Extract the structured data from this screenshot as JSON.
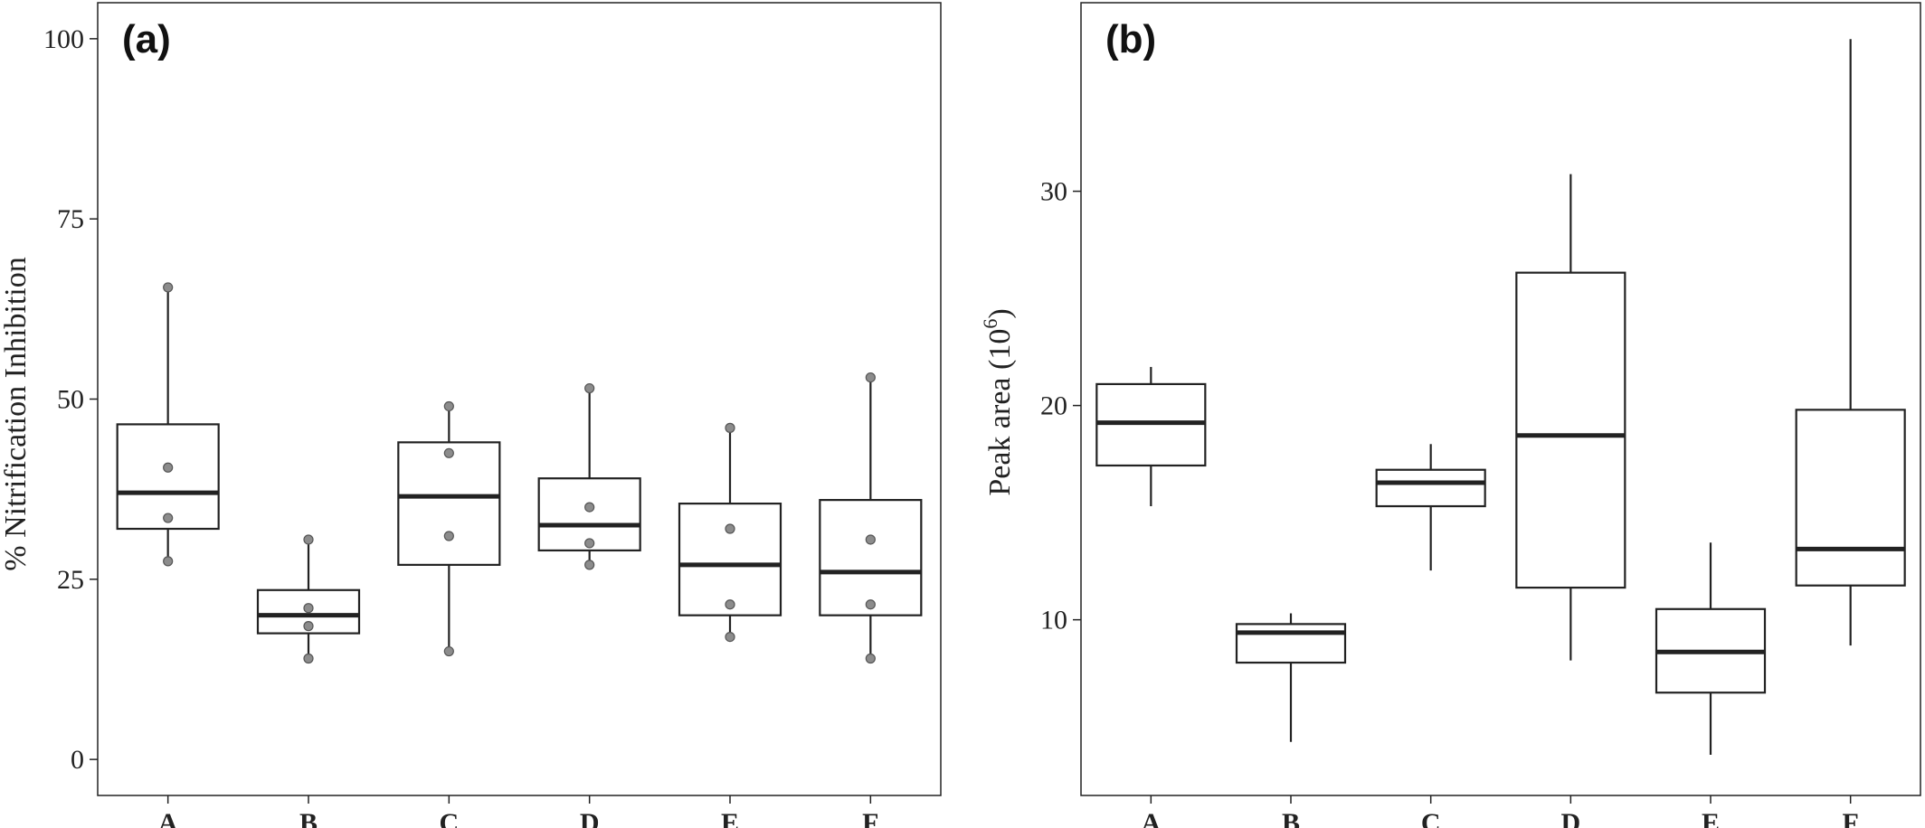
{
  "chart_data": [
    {
      "type": "box",
      "panel_label": "(a)",
      "ylabel": "% Nitrification Inhibition",
      "xlabel": "",
      "ylim": [
        -5,
        105
      ],
      "yticks": [
        0,
        25,
        50,
        75,
        100
      ],
      "categories": [
        "A",
        "B",
        "C",
        "D",
        "E",
        "F"
      ],
      "boxes": [
        {
          "category": "A",
          "whisker_low": 27.5,
          "q1": 32,
          "median": 37,
          "q3": 46.5,
          "whisker_high": 65.5
        },
        {
          "category": "B",
          "whisker_low": 14,
          "q1": 17.5,
          "median": 20,
          "q3": 23.5,
          "whisker_high": 30.5
        },
        {
          "category": "C",
          "whisker_low": 15,
          "q1": 27,
          "median": 36.5,
          "q3": 44,
          "whisker_high": 49
        },
        {
          "category": "D",
          "whisker_low": 27,
          "q1": 29,
          "median": 32.5,
          "q3": 39,
          "whisker_high": 51.5
        },
        {
          "category": "E",
          "whisker_low": 17,
          "q1": 20,
          "median": 27,
          "q3": 35.5,
          "whisker_high": 46
        },
        {
          "category": "F",
          "whisker_low": 14,
          "q1": 20,
          "median": 26,
          "q3": 36,
          "whisker_high": 53
        }
      ],
      "points": [
        {
          "category": "A",
          "values": [
            27.5,
            33.5,
            40.5,
            65.5
          ]
        },
        {
          "category": "B",
          "values": [
            14,
            18.5,
            21,
            30.5
          ]
        },
        {
          "category": "C",
          "values": [
            15,
            31,
            42.5,
            49
          ]
        },
        {
          "category": "D",
          "values": [
            27,
            30,
            35,
            51.5
          ]
        },
        {
          "category": "E",
          "values": [
            17,
            21.5,
            32,
            46
          ]
        },
        {
          "category": "F",
          "values": [
            14,
            21.5,
            30.5,
            53
          ]
        }
      ],
      "grid": false
    },
    {
      "type": "box",
      "panel_label": "(b)",
      "ylabel": "Peak area  (10",
      "ylabel_superscript": "6",
      "ylabel_suffix": ")",
      "xlabel": "",
      "ylim": [
        1.8,
        38.8
      ],
      "yticks": [
        10,
        20,
        30
      ],
      "categories": [
        "A",
        "B",
        "C",
        "D",
        "E",
        "F"
      ],
      "boxes": [
        {
          "category": "A",
          "whisker_low": 15.3,
          "q1": 17.2,
          "median": 19.2,
          "q3": 21,
          "whisker_high": 21.8
        },
        {
          "category": "B",
          "whisker_low": 4.3,
          "q1": 8,
          "median": 9.4,
          "q3": 9.8,
          "whisker_high": 10.3
        },
        {
          "category": "C",
          "whisker_low": 12.3,
          "q1": 15.3,
          "median": 16.4,
          "q3": 17,
          "whisker_high": 18.2
        },
        {
          "category": "D",
          "whisker_low": 8.1,
          "q1": 11.5,
          "median": 18.6,
          "q3": 26.2,
          "whisker_high": 30.8
        },
        {
          "category": "E",
          "whisker_low": 3.7,
          "q1": 6.6,
          "median": 8.5,
          "q3": 10.5,
          "whisker_high": 13.6
        },
        {
          "category": "F",
          "whisker_low": 8.8,
          "q1": 11.6,
          "median": 13.3,
          "q3": 19.8,
          "whisker_high": 37.1
        }
      ],
      "grid": false
    }
  ]
}
